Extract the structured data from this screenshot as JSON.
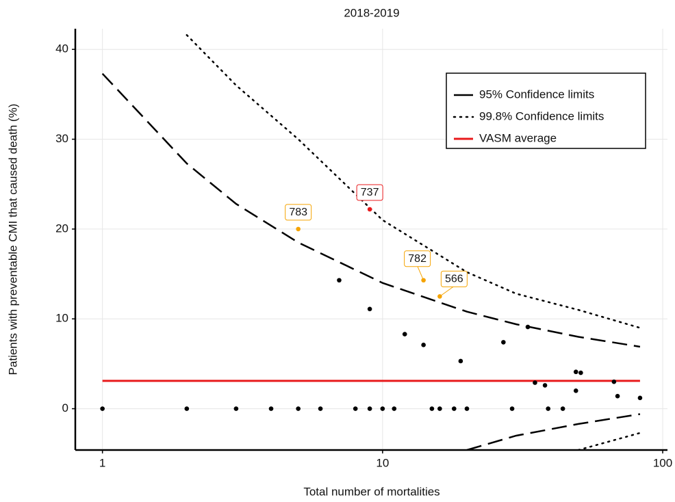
{
  "chart_data": {
    "type": "scatter",
    "title": "2018-2019",
    "x_label": "Total number of mortalities",
    "y_label": "Patients with preventable CMI that caused death (%)",
    "log_x": true,
    "grid": true,
    "legend": "top-right",
    "xlim": [
      0.8,
      104
    ],
    "ylim": [
      -4.6,
      42.3
    ],
    "xticks": [
      1,
      10,
      100
    ],
    "yticks": [
      0,
      10,
      20,
      30,
      40
    ],
    "series": [
      {
        "color": "#000000",
        "x": [
          1,
          2,
          3,
          4,
          5,
          6,
          8,
          9,
          10,
          11,
          15,
          16,
          18,
          20,
          29,
          39,
          44,
          7,
          9,
          12,
          14,
          19,
          27,
          33,
          35,
          38,
          49,
          51,
          49,
          67,
          69,
          83
        ],
        "values": [
          0,
          0,
          0,
          0,
          0,
          0,
          0,
          0,
          0,
          0,
          0,
          0,
          0,
          0,
          0,
          0,
          0,
          14.3,
          11.1,
          8.3,
          7.1,
          5.3,
          7.4,
          9.1,
          2.9,
          2.6,
          4.1,
          4.0,
          2.0,
          3.0,
          1.4,
          1.2
        ]
      },
      {
        "color": "#f5a300",
        "x": [
          5,
          14,
          16
        ],
        "values": [
          20,
          14.3,
          12.5
        ],
        "labels": [
          "783",
          "782",
          "566"
        ]
      },
      {
        "color": "#e8191b",
        "x": [
          9
        ],
        "values": [
          22.2
        ],
        "labels": [
          "737"
        ]
      }
    ],
    "lines": [
      {
        "name": "95% Confidence limits",
        "color": "#000000",
        "dash": "dashed",
        "x": [
          1,
          2,
          3,
          5,
          10,
          20,
          30,
          50,
          83
        ],
        "upper": [
          37.3,
          27.3,
          22.8,
          18.5,
          14.0,
          10.8,
          9.4,
          8.0,
          6.9
        ],
        "lower": [
          null,
          null,
          null,
          null,
          null,
          -4.6,
          -3.0,
          -1.7,
          -0.6
        ]
      },
      {
        "name": "99.8% Confidence limits",
        "color": "#000000",
        "dash": "dotted",
        "x": [
          1,
          2,
          3,
          5,
          10,
          20,
          30,
          50,
          83
        ],
        "upper": [
          null,
          41.6,
          36.0,
          30.0,
          21.0,
          15.2,
          12.8,
          11.0,
          9.0
        ],
        "lower": [
          null,
          null,
          null,
          null,
          null,
          null,
          null,
          -4.6,
          -2.7
        ]
      },
      {
        "name": "VASM average",
        "color": "#e8191b",
        "dash": "solid",
        "x": [
          1,
          83
        ],
        "upper": [
          3.1,
          3.1
        ]
      }
    ]
  }
}
